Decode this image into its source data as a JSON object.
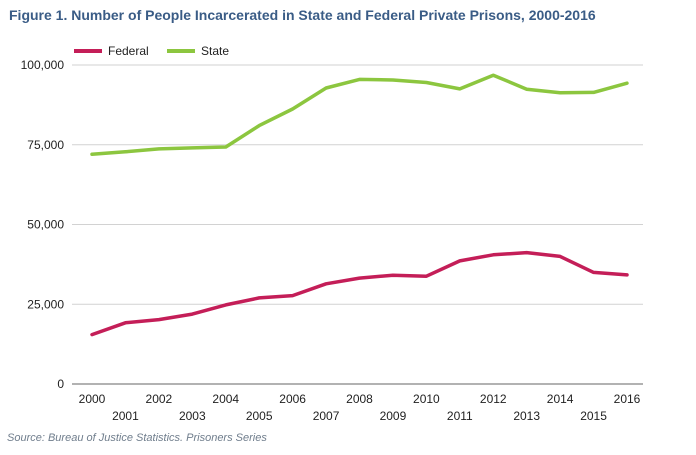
{
  "chart_data": {
    "type": "line",
    "title": "Figure 1. Number of People Incarcerated in State and Federal Private Prisons, 2000-2016",
    "source": "Source: Bureau of Justice Statistics. Prisoners Series",
    "x": [
      2000,
      2001,
      2002,
      2003,
      2004,
      2005,
      2006,
      2007,
      2008,
      2009,
      2010,
      2011,
      2012,
      2013,
      2014,
      2015,
      2016
    ],
    "x_tick_labels": [
      "2000",
      "2001",
      "2002",
      "2003",
      "2004",
      "2005",
      "2006",
      "2007",
      "2008",
      "2009",
      "2010",
      "2011",
      "2012",
      "2013",
      "2014",
      "2015",
      "2016"
    ],
    "series": [
      {
        "name": "Federal",
        "color": "#c41e58",
        "values": [
          15500,
          19200,
          20200,
          21900,
          24800,
          27000,
          27700,
          31400,
          33200,
          34100,
          33800,
          38600,
          40500,
          41200,
          40000,
          35000,
          34200
        ]
      },
      {
        "name": "State",
        "color": "#8cc63f",
        "values": [
          72000,
          72800,
          73700,
          74000,
          74300,
          81000,
          86200,
          92800,
          95500,
          95300,
          94500,
          92500,
          96800,
          92400,
          91300,
          91400,
          94300
        ]
      }
    ],
    "yticks": [
      0,
      25000,
      50000,
      75000,
      100000
    ],
    "ytick_labels": [
      "0",
      "25,000",
      "50,000",
      "75,000",
      "100,000"
    ],
    "ylim": [
      0,
      100000
    ],
    "xlabel": "",
    "ylabel": "",
    "grid": "horizontal",
    "legend": "top-left"
  }
}
